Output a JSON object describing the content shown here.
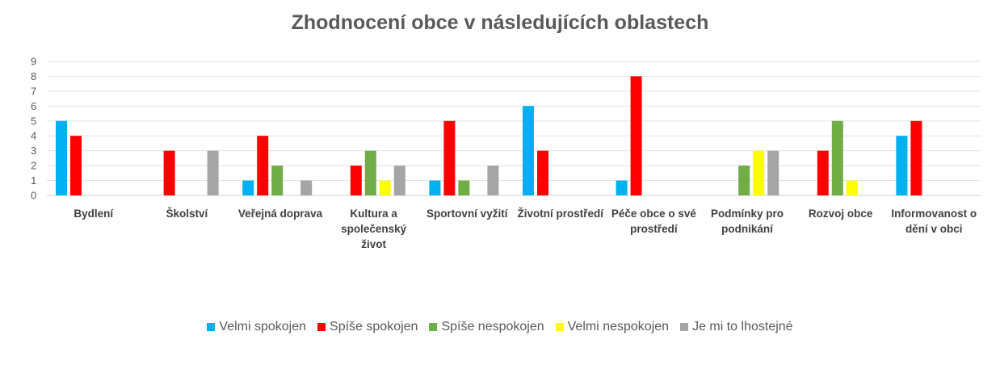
{
  "chart_data": {
    "type": "bar",
    "title": "Zhodnocení obce v následujících oblastech",
    "categories": [
      "Bydlení",
      "Školství",
      "Veřejná doprava",
      "Kultura a společenský život",
      "Sportovní vyžití",
      "Životní prostředí",
      "Péče obce o své prostředí",
      "Podmínky pro podnikání",
      "Rozvoj obce",
      "Informovanost o dění v obci"
    ],
    "category_label_lines": [
      [
        "Bydlení"
      ],
      [
        "Školství"
      ],
      [
        "Veřejná doprava"
      ],
      [
        "Kultura a",
        "společenský",
        "život"
      ],
      [
        "Sportovní vyžití"
      ],
      [
        "Životní prostředí"
      ],
      [
        "Péče obce o své",
        "prostředí"
      ],
      [
        "Podmínky pro",
        "podnikání"
      ],
      [
        "Rozvoj obce"
      ],
      [
        "Informovanost o",
        "dění v obci"
      ]
    ],
    "series": [
      {
        "name": "Velmi spokojen",
        "color": "#00B0F0",
        "values": [
          5,
          0,
          1,
          0,
          1,
          6,
          1,
          0,
          0,
          4
        ]
      },
      {
        "name": "Spíše spokojen",
        "color": "#FF0000",
        "values": [
          4,
          3,
          4,
          2,
          5,
          3,
          8,
          0,
          3,
          5
        ]
      },
      {
        "name": "Spíše nespokojen",
        "color": "#70AD47",
        "values": [
          0,
          0,
          2,
          3,
          1,
          0,
          0,
          2,
          5,
          0
        ]
      },
      {
        "name": "Velmi nespokojen",
        "color": "#FFFF00",
        "values": [
          0,
          0,
          0,
          1,
          0,
          0,
          0,
          3,
          1,
          0
        ]
      },
      {
        "name": "Je mi to lhostejné",
        "color": "#A5A5A5",
        "values": [
          0,
          3,
          1,
          2,
          2,
          0,
          0,
          3,
          0,
          0
        ]
      }
    ],
    "ylim": [
      0,
      9
    ],
    "yticks": [
      0,
      1,
      2,
      3,
      4,
      5,
      6,
      7,
      8,
      9
    ],
    "grid": true,
    "legend_position": "bottom"
  }
}
